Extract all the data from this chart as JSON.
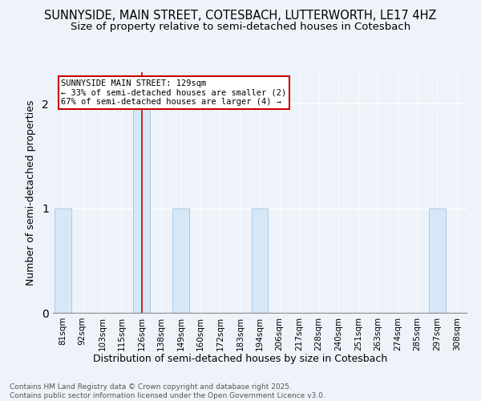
{
  "title": "SUNNYSIDE, MAIN STREET, COTESBACH, LUTTERWORTH, LE17 4HZ",
  "subtitle": "Size of property relative to semi-detached houses in Cotesbach",
  "xlabel": "Distribution of semi-detached houses by size in Cotesbach",
  "ylabel": "Number of semi-detached properties",
  "categories": [
    "81sqm",
    "92sqm",
    "103sqm",
    "115sqm",
    "126sqm",
    "138sqm",
    "149sqm",
    "160sqm",
    "172sqm",
    "183sqm",
    "194sqm",
    "206sqm",
    "217sqm",
    "228sqm",
    "240sqm",
    "251sqm",
    "263sqm",
    "274sqm",
    "285sqm",
    "297sqm",
    "308sqm"
  ],
  "values": [
    1,
    0,
    0,
    0,
    2,
    0,
    1,
    0,
    0,
    0,
    1,
    0,
    0,
    0,
    0,
    0,
    0,
    0,
    0,
    1,
    0
  ],
  "highlight_index": 4,
  "bar_color": "#d6e8f7",
  "bar_edge_color": "#a8c8e8",
  "highlight_line_color": "#cc0000",
  "annotation_text": "SUNNYSIDE MAIN STREET: 129sqm\n← 33% of semi-detached houses are smaller (2)\n67% of semi-detached houses are larger (4) →",
  "annotation_box_color": "#ffffff",
  "annotation_box_edge_color": "#cc0000",
  "footnote": "Contains HM Land Registry data © Crown copyright and database right 2025.\nContains public sector information licensed under the Open Government Licence v3.0.",
  "ylim": [
    0,
    2.3
  ],
  "yticks": [
    0,
    1,
    2
  ],
  "background_color": "#eef3fa",
  "title_fontsize": 10.5,
  "subtitle_fontsize": 9.5
}
